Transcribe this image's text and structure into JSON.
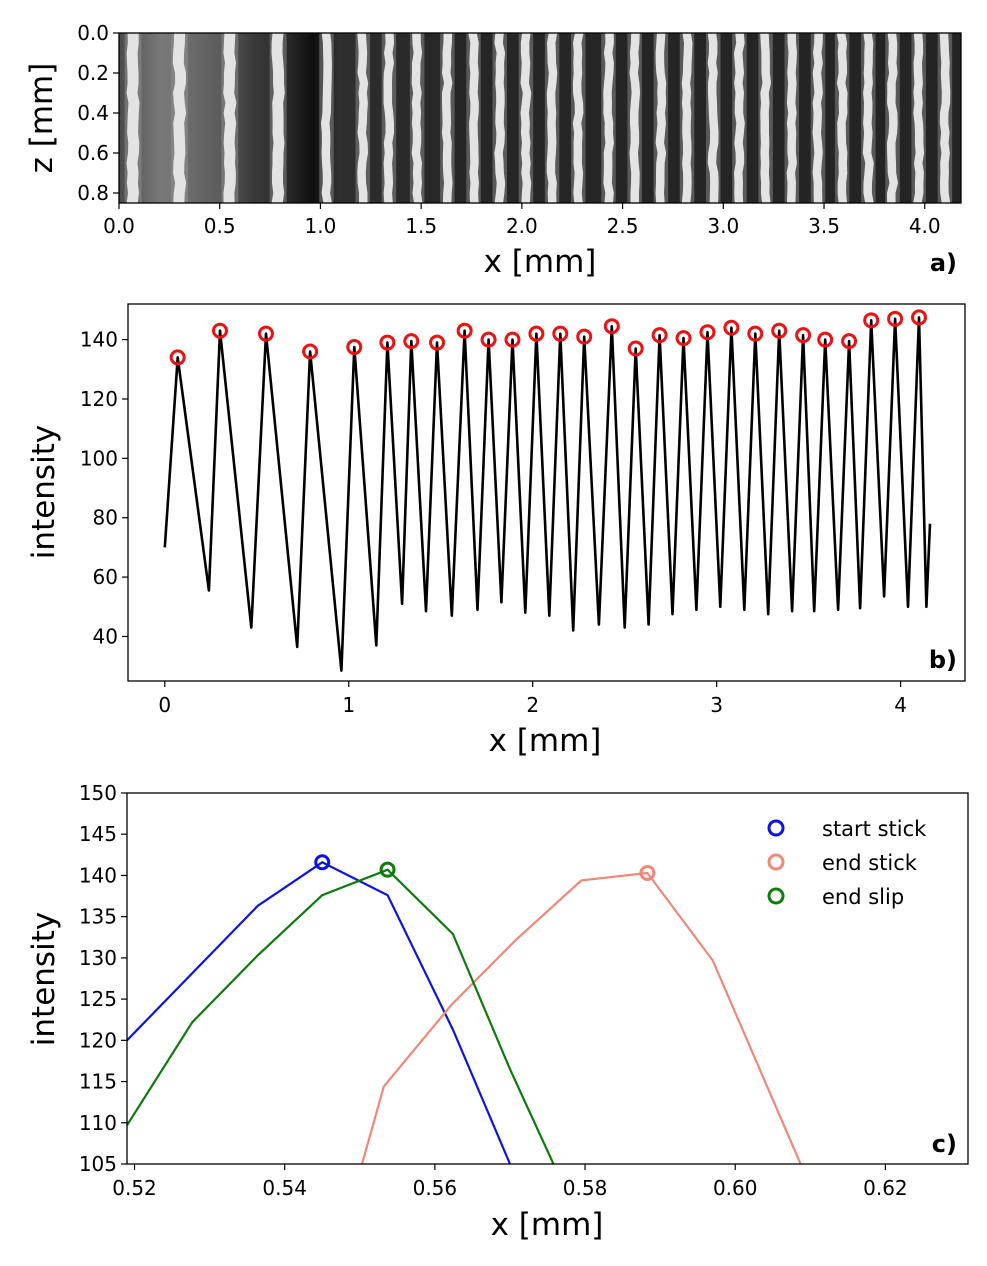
{
  "chart_data": [
    {
      "panel": "a)",
      "type": "heatmap",
      "xlabel": "x [mm]",
      "ylabel": "z [mm]",
      "xlim": [
        0.0,
        4.18
      ],
      "ylim": [
        0.85,
        0.0
      ],
      "xticks": [
        "0.0",
        "0.5",
        "1.0",
        "1.5",
        "2.0",
        "2.5",
        "3.0",
        "3.5",
        "4.0"
      ],
      "yticks": [
        "0.0",
        "0.2",
        "0.4",
        "0.6",
        "0.8"
      ],
      "stripe_positions_mm": [
        0.07,
        0.3,
        0.55,
        0.79,
        1.03,
        1.21,
        1.34,
        1.48,
        1.63,
        1.76,
        1.89,
        2.02,
        2.15,
        2.28,
        2.43,
        2.56,
        2.69,
        2.82,
        2.95,
        3.08,
        3.21,
        3.34,
        3.47,
        3.59,
        3.72,
        3.84,
        3.97,
        4.1
      ],
      "colormap": "gray"
    },
    {
      "panel": "b)",
      "type": "line",
      "xlabel": "x [mm]",
      "ylabel": "intensity",
      "xlim": [
        -0.2,
        4.35
      ],
      "ylim": [
        25,
        152
      ],
      "xticks": [
        "0",
        "1",
        "2",
        "3",
        "4"
      ],
      "yticks": [
        "40",
        "60",
        "80",
        "100",
        "120",
        "140"
      ],
      "line_color": "#000000",
      "marker_color": "#ee1111",
      "start": [
        0.0,
        70
      ],
      "end": [
        4.16,
        78
      ],
      "peaks_x": [
        0.07,
        0.3,
        0.55,
        0.79,
        1.03,
        1.21,
        1.34,
        1.48,
        1.63,
        1.76,
        1.89,
        2.02,
        2.15,
        2.28,
        2.43,
        2.56,
        2.69,
        2.82,
        2.95,
        3.08,
        3.21,
        3.34,
        3.47,
        3.59,
        3.72,
        3.84,
        3.97,
        4.1
      ],
      "peaks_y": [
        134,
        143,
        142,
        136,
        137.5,
        139,
        139.5,
        139,
        143,
        140,
        140,
        142,
        142,
        141,
        144.5,
        137,
        141.5,
        140.5,
        142.5,
        144,
        142,
        143,
        141.5,
        140,
        139.5,
        146.5,
        147,
        147.5
      ],
      "minima_x": [
        0.24,
        0.47,
        0.72,
        0.96,
        1.15,
        1.29,
        1.42,
        1.56,
        1.7,
        1.83,
        1.96,
        2.09,
        2.22,
        2.36,
        2.5,
        2.63,
        2.76,
        2.89,
        3.02,
        3.15,
        3.28,
        3.41,
        3.53,
        3.66,
        3.78,
        3.91,
        4.04
      ],
      "minima_y": [
        55.5,
        43,
        36.5,
        28.5,
        37,
        51,
        48.5,
        47,
        49,
        51.5,
        48,
        47,
        42,
        44,
        43,
        44,
        47.5,
        49,
        50,
        49,
        47.5,
        48.5,
        48.5,
        49,
        49.5,
        53.5,
        50
      ]
    },
    {
      "panel": "c)",
      "type": "line",
      "xlabel": "x [mm]",
      "ylabel": "intensity",
      "xlim": [
        0.519,
        0.631
      ],
      "ylim": [
        105,
        150
      ],
      "xticks": [
        "0.52",
        "0.54",
        "0.56",
        "0.58",
        "0.60",
        "0.62"
      ],
      "yticks": [
        "105",
        "110",
        "115",
        "120",
        "125",
        "130",
        "135",
        "140",
        "145",
        "150"
      ],
      "series": [
        {
          "name": "start stick",
          "color": "#0a14e8",
          "x": [
            0.519,
            0.5364,
            0.545,
            0.5537,
            0.5624,
            0.57
          ],
          "y": [
            120.0,
            136.3,
            141.6,
            137.6,
            121.3,
            105.0
          ],
          "marker": [
            0.545,
            141.6
          ]
        },
        {
          "name": "end stick",
          "color": "#f08878",
          "x": [
            0.5503,
            0.5532,
            0.5622,
            0.5708,
            0.5795,
            0.5883,
            0.597,
            0.6087
          ],
          "y": [
            105.0,
            114.4,
            124.3,
            132.2,
            139.4,
            140.3,
            129.7,
            105.0
          ],
          "marker": [
            0.5883,
            140.3
          ]
        },
        {
          "name": "end slip",
          "color": "#0d7a0d",
          "x": [
            0.519,
            0.5277,
            0.5364,
            0.545,
            0.5537,
            0.5624,
            0.57,
            0.5758
          ],
          "y": [
            109.7,
            122.2,
            130.3,
            137.6,
            140.7,
            132.9,
            116.5,
            105.0
          ],
          "marker": [
            0.5537,
            140.7
          ]
        }
      ]
    }
  ]
}
